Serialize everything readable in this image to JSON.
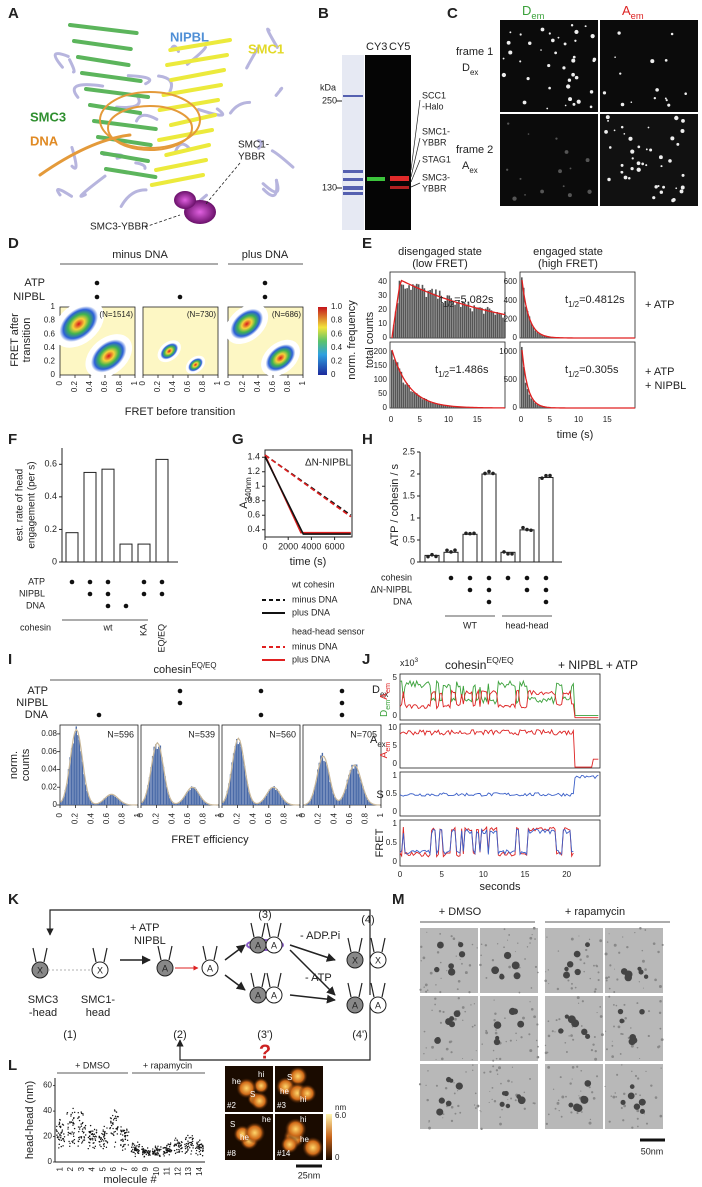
{
  "panel_letters": [
    "A",
    "B",
    "C",
    "D",
    "E",
    "F",
    "G",
    "H",
    "I",
    "J",
    "K",
    "L",
    "M"
  ],
  "a": {
    "nipbl": "NIPBL",
    "smc1": "SMC1",
    "smc3": "SMC3",
    "dna": "DNA",
    "smc1_ybbr": [
      "SMC1-",
      "YBBR"
    ],
    "smc3_ybbr": "SMC3-YBBR"
  },
  "b": {
    "lanes": [
      "CY3",
      "CY5"
    ],
    "unit": "kDa",
    "markers": [
      "250",
      "130"
    ],
    "bands": [
      "SCC1",
      "-Halo",
      "SMC1-",
      "YBBR",
      "STAG1",
      "SMC3-",
      "YBBR"
    ]
  },
  "c": {
    "D": "D",
    "A": "A",
    "em": "em",
    "ex": "ex",
    "frame1": "frame 1",
    "frame2": "frame 2"
  },
  "d": {
    "groups": [
      "minus DNA",
      "plus DNA"
    ],
    "rows": [
      "ATP",
      "NIPBL"
    ],
    "n": [
      "(N=1514)",
      "(N=730)",
      "(N=686)"
    ],
    "ylabel": [
      "FRET after",
      "transition"
    ],
    "xlabel": "FRET before transition",
    "ticks": [
      "0",
      "0.2",
      "0.4",
      "0.6",
      "0.8",
      "1"
    ],
    "cbar_ticks": [
      "1.0",
      "0.8",
      "0.6",
      "0.4",
      "0.2",
      "0"
    ],
    "cbar_label": "norm. frequency"
  },
  "e": {
    "titles": [
      "disengaged state",
      "(low FRET)",
      "engaged state",
      "(high FRET)"
    ],
    "ylabel": "total counts",
    "xlabel": "time (s)",
    "conditions": [
      "+ ATP",
      "+ ATP",
      "+ NIPBL"
    ],
    "t": "t",
    "half": "1/2",
    "half_lives": [
      "=5.082s",
      "=0.4812s",
      "=1.486s",
      "=0.305s"
    ],
    "yticks": [
      [
        "0",
        "10",
        "20",
        "30",
        "40"
      ],
      [
        "0",
        "200",
        "400",
        "600"
      ],
      [
        "0",
        "50",
        "100",
        "150",
        "200"
      ],
      [
        "0",
        "500",
        "1000"
      ]
    ],
    "xticks": [
      "0",
      "5",
      "10",
      "15"
    ]
  },
  "f": {
    "ylabel": [
      "est. rate of head",
      "engagement (per s)"
    ],
    "values": [
      0.18,
      0.55,
      0.57,
      0.11,
      0.11,
      0.63
    ],
    "ylim": [
      0,
      0.7
    ],
    "yticks": [
      0,
      0.2,
      0.4,
      0.6
    ],
    "rows": [
      "ATP",
      "NIPBL",
      "DNA"
    ],
    "cohesin": "cohesin",
    "groups": [
      "wt",
      "KA",
      "EQ/EQ"
    ]
  },
  "g": {
    "ylabel": "A",
    "ysub": "340nm",
    "inset": "ΔN-NIPBL",
    "yticks": [
      0.4,
      0.6,
      0.8,
      1,
      1.2,
      1.4
    ],
    "ylim": [
      0.3,
      1.5
    ],
    "xticks": [
      0,
      2000,
      4000,
      6000
    ],
    "xlim": [
      0,
      7500
    ],
    "xlabel": "time (s)",
    "legend": [
      "wt cohesin",
      "minus DNA",
      "plus DNA",
      "head-head sensor",
      "minus DNA",
      "plus DNA"
    ]
  },
  "h": {
    "ylabel": "ATP / cohesin / s",
    "values": [
      0.15,
      0.22,
      0.63,
      2.0,
      0.22,
      0.73,
      1.92
    ],
    "ylim": [
      0,
      2.5
    ],
    "yticks": [
      0,
      0.5,
      1,
      1.5,
      2,
      2.5
    ],
    "rows": [
      "cohesin",
      "ΔN-NIPBL",
      "DNA"
    ],
    "groups": [
      "WT",
      "head-head"
    ]
  },
  "i": {
    "title": "cohesin",
    "sup": "EQ/EQ",
    "rows": [
      "ATP",
      "NIPBL",
      "DNA"
    ],
    "ylabel": [
      "norm.",
      "counts"
    ],
    "n": [
      "N=596",
      "N=539",
      "N=560",
      "N=705"
    ],
    "yticks": [
      0,
      0.02,
      0.04,
      0.06,
      0.08
    ],
    "xticks": [
      0,
      0.2,
      0.4,
      0.6,
      0.8,
      1
    ],
    "xlabel": "FRET efficiency"
  },
  "j": {
    "scale": "x10",
    "scale_exp": "3",
    "title": "cohesin",
    "sup": "EQ/EQ",
    "title_rest": "+ NIPBL + ATP",
    "D": "D",
    "A": "A",
    "ex": "ex",
    "em": "em",
    "S": "S",
    "FRET": "FRET",
    "yticks1": [
      "0",
      "5"
    ],
    "yticks2": [
      "0",
      "5",
      "10"
    ],
    "yticks3": [
      "0",
      "0.5",
      "1"
    ],
    "xticks": [
      "0",
      "5",
      "10",
      "15",
      "20"
    ],
    "xlabel": "seconds"
  },
  "k": {
    "reagents": [
      "+ ATP",
      "NIPBL"
    ],
    "states": [
      "(1)",
      "(2)",
      "(3)",
      "(4)",
      "(3')",
      "(4')"
    ],
    "steps": [
      "- ADP.Pi",
      "- ATP"
    ],
    "smc3": [
      "SMC3",
      "-head"
    ],
    "smc1": [
      "SMC1-",
      "head"
    ],
    "x": "X",
    "a": "A",
    "question": "?"
  },
  "l": {
    "groups": [
      "+ DMSO",
      "+ rapamycin"
    ],
    "ylabel": "head-head (nm)",
    "xlabel": "molecule #",
    "yticks": [
      "0",
      "20",
      "40",
      "60"
    ],
    "xticks": [
      "1",
      "2",
      "3",
      "4",
      "5",
      "6",
      "7",
      "8",
      "9",
      "10",
      "11",
      "12",
      "13",
      "14"
    ],
    "tags": [
      "hi",
      "he",
      "S"
    ],
    "ids": [
      "#2",
      "#3",
      "#8",
      "#14"
    ],
    "cbar_unit": "nm",
    "cbar": [
      "6.0",
      "0"
    ],
    "scale": "25nm"
  },
  "m": {
    "groups": [
      "+ DMSO",
      "+ rapamycin"
    ],
    "scale": "50nm"
  }
}
